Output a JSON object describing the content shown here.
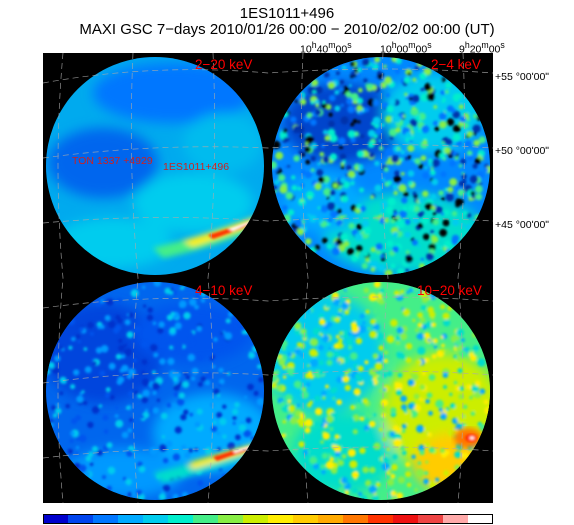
{
  "header": {
    "source_name": "1ES1011+496",
    "subtitle": "MAXI GSC 7−days 2010/01/26 00:00 − 2010/02/02 00:00 (UT)"
  },
  "ra_labels": [
    {
      "h": "10",
      "hs": "h",
      "m": "40",
      "ms": "m",
      "s": "00",
      "ss": "s"
    },
    {
      "h": "10",
      "hs": "h",
      "m": "00",
      "ms": "m",
      "s": "00",
      "ss": "s"
    },
    {
      "h": "9",
      "hs": "h",
      "m": "20",
      "ms": "m",
      "s": "00",
      "ss": "s"
    }
  ],
  "dec_labels": [
    "+55 °00ʹ00ʺ",
    "+50 °00ʹ00ʺ",
    "+45 °00ʹ00ʺ"
  ],
  "panels": [
    {
      "band": "2−20 keV"
    },
    {
      "band": "2−4 keV"
    },
    {
      "band": "4−10 keV"
    },
    {
      "band": "10−20 keV"
    }
  ],
  "sources": [
    {
      "label": "TON 1337 +4929"
    },
    {
      "label": "1ES1011+496"
    }
  ],
  "colors": {
    "band_label": "#ff0000",
    "source_label": "#cc2222",
    "background": "#000000",
    "colorbar": [
      "#0000cc",
      "#0044ee",
      "#0077ff",
      "#00aaff",
      "#00ccee",
      "#00eecc",
      "#44ee88",
      "#88ee44",
      "#ccee00",
      "#ffee00",
      "#ffcc00",
      "#ffaa00",
      "#ff7700",
      "#ff3300",
      "#ee1111",
      "#ee4444",
      "#ffaaaa",
      "#ffffff"
    ]
  }
}
